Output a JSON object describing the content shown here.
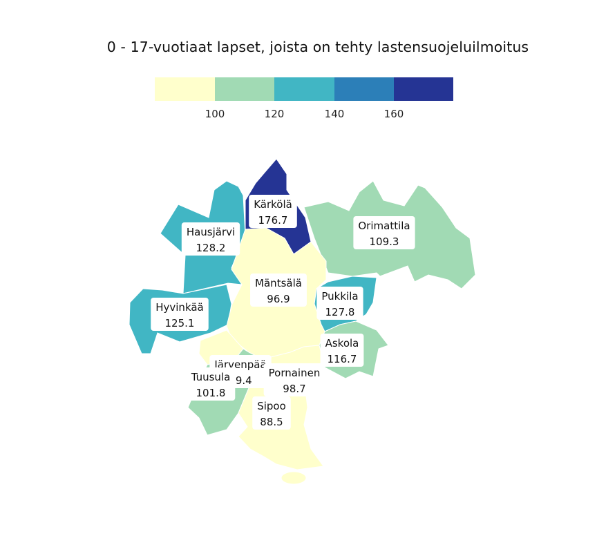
{
  "title": "0 - 17-vuotiaat lapset, joista on tehty lastensuojeluilmoitus",
  "legend": {
    "breaks": [
      100,
      120,
      140,
      160
    ],
    "colors": [
      "#ffffcc",
      "#a1dab4",
      "#41b6c4",
      "#2c7fb8",
      "#253494"
    ]
  },
  "regions": [
    {
      "name": "Kärkölä",
      "value": 176.7,
      "value_label": "176.7"
    },
    {
      "name": "Orimattila",
      "value": 109.3,
      "value_label": "109.3"
    },
    {
      "name": "Hausjärvi",
      "value": 128.2,
      "value_label": "128.2"
    },
    {
      "name": "Mäntsälä",
      "value": 96.9,
      "value_label": "96.9"
    },
    {
      "name": "Pukkila",
      "value": 127.8,
      "value_label": "127.8"
    },
    {
      "name": "Hyvinkää",
      "value": 125.1,
      "value_label": "125.1"
    },
    {
      "name": "Askola",
      "value": 116.7,
      "value_label": "116.7"
    },
    {
      "name": "Järvenpää",
      "value": 99.4,
      "value_label": "99.4"
    },
    {
      "name": "Pornainen",
      "value": 98.7,
      "value_label": "98.7"
    },
    {
      "name": "Tuusula",
      "value": 101.8,
      "value_label": "101.8"
    },
    {
      "name": "Sipoo",
      "value": 88.5,
      "value_label": "88.5"
    }
  ]
}
